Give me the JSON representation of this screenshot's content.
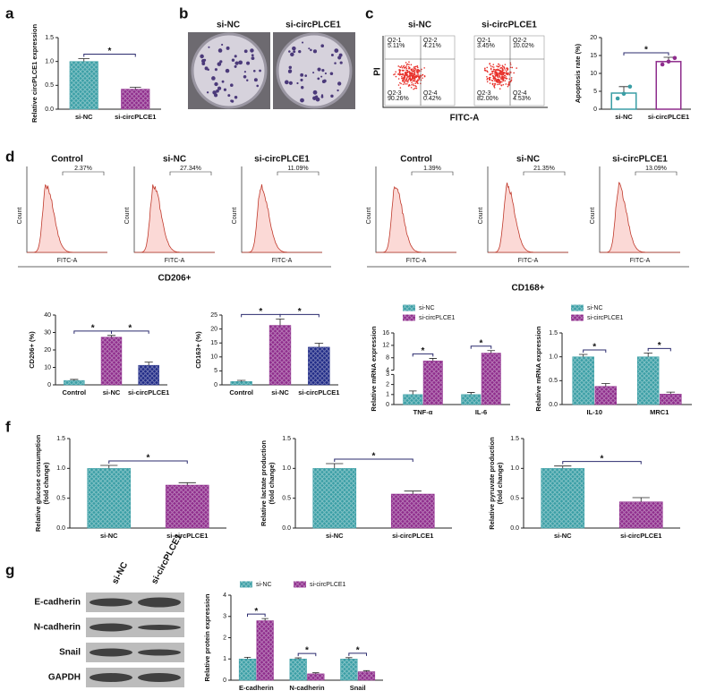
{
  "panel_labels": [
    "a",
    "b",
    "c",
    "d",
    "f",
    "g"
  ],
  "colony_assay": {
    "labels": [
      "si-NC",
      "si-circPLCE1"
    ]
  },
  "flow_apoptosis": {
    "y_label": "PI",
    "x_label": "FITC-A",
    "plots": [
      {
        "title": "si-NC",
        "quadrants": [
          {
            "name": "Q2-1",
            "percent": "5.11%"
          },
          {
            "name": "Q2-2",
            "percent": "4.21%"
          },
          {
            "name": "Q2-3",
            "percent": "90.26%"
          },
          {
            "name": "Q2-4",
            "percent": "0.42%"
          }
        ]
      },
      {
        "title": "si-circPLCE1",
        "quadrants": [
          {
            "name": "Q2-1",
            "percent": "3.45%"
          },
          {
            "name": "Q2-2",
            "percent": "10.02%"
          },
          {
            "name": "Q2-3",
            "percent": "82.00%"
          },
          {
            "name": "Q2-4",
            "percent": "4.53%"
          }
        ]
      }
    ]
  },
  "histograms": {
    "x_label": "FITC-A",
    "y_label": "Count",
    "groups": [
      {
        "label": "CD206+",
        "plots": [
          {
            "title": "Control",
            "gate": "2.37%"
          },
          {
            "title": "si-NC",
            "gate": "27.34%"
          },
          {
            "title": "si-circPLCE1",
            "gate": "11.09%"
          }
        ]
      },
      {
        "label": "CD168+",
        "plots": [
          {
            "title": "Control",
            "gate": "1.39%"
          },
          {
            "title": "si-NC",
            "gate": "21.35%"
          },
          {
            "title": "si-circPLCE1",
            "gate": "13.09%"
          }
        ]
      }
    ]
  },
  "western_blot": {
    "lanes": [
      "si-NC",
      "si-circPLCE1"
    ],
    "rows": [
      "E-cadherin",
      "N-cadherin",
      "Snail",
      "GAPDH"
    ]
  },
  "chart_data": [
    {
      "type": "bar",
      "y_label": "Relative circPLCE1 expression",
      "categories": [
        "si-NC",
        "si-circPLCE1"
      ],
      "values": [
        1.0,
        0.42
      ],
      "errors": [
        0.06,
        0.04
      ],
      "colors": [
        "#3a9ea5",
        "#8e2c8c"
      ],
      "ylim": [
        0,
        1.5
      ],
      "yticks": [
        {
          "value": 0,
          "label": "0.0"
        },
        0.5,
        {
          "value": 1,
          "label": "1.0"
        },
        1.5
      ],
      "significance": [
        {
          "label": "*",
          "between": [
            0,
            1
          ]
        }
      ]
    },
    {
      "type": "bar",
      "y_label": "Apoptosis rate (%)",
      "categories": [
        "si-NC",
        "si-circPLCE1"
      ],
      "values": [
        4.5,
        13.3
      ],
      "errors": [
        1.8,
        1.2
      ],
      "points": [
        [
          3.0,
          4.3,
          6.3
        ],
        [
          12.5,
          13.3,
          14.3
        ]
      ],
      "colors": [
        "#3a9ea5",
        "#8e2c8c"
      ],
      "bar_style": "outline",
      "ylim": [
        0,
        20
      ],
      "yticks": [
        0,
        5,
        10,
        15,
        20
      ],
      "significance": [
        {
          "label": "*",
          "between": [
            0,
            1
          ]
        }
      ]
    },
    {
      "type": "bar",
      "y_label": "CD206+ (%)",
      "categories": [
        "Control",
        "si-NC",
        "si-circPLCE1"
      ],
      "values": [
        2.5,
        27.3,
        11.2
      ],
      "errors": [
        0.6,
        1.0,
        1.8
      ],
      "colors": [
        "#3a9ea5",
        "#8e2c8c",
        "#1f2a86"
      ],
      "ylim": [
        0,
        40
      ],
      "yticks": [
        0,
        10,
        20,
        30,
        40
      ],
      "significance": [
        {
          "label": "*",
          "between": [
            0,
            1
          ]
        },
        {
          "label": "*",
          "between": [
            1,
            2
          ]
        }
      ]
    },
    {
      "type": "bar",
      "y_label": "CD163+ (%)",
      "categories": [
        "Control",
        "si-NC",
        "si-circPLCE1"
      ],
      "values": [
        1.2,
        21.3,
        13.5
      ],
      "errors": [
        0.4,
        2.3,
        1.4
      ],
      "colors": [
        "#3a9ea5",
        "#8e2c8c",
        "#1f2a86"
      ],
      "ylim": [
        0,
        25
      ],
      "yticks": [
        0,
        5,
        10,
        15,
        20,
        25
      ],
      "significance": [
        {
          "label": "*",
          "between": [
            0,
            1
          ]
        },
        {
          "label": "*",
          "between": [
            1,
            2
          ]
        }
      ]
    },
    {
      "type": "bar",
      "y_label": "Relative mRNA expression",
      "categories": [
        "TNF-α",
        "IL-6"
      ],
      "series": [
        {
          "name": "si-NC",
          "color": "#3a9ea5",
          "values": [
            1.0,
            1.0
          ],
          "errors": [
            0.35,
            0.2
          ]
        },
        {
          "name": "si-circPLCE1",
          "color": "#8e2c8c",
          "values": [
            7.0,
            9.5
          ],
          "errors": [
            0.8,
            0.8
          ]
        }
      ],
      "ylim": [
        0,
        16
      ],
      "ybreak": [
        3,
        4
      ],
      "yticks": [
        0,
        1,
        2,
        3,
        4,
        8,
        12,
        16
      ],
      "significance": [
        {
          "label": "*",
          "category": 0
        },
        {
          "label": "*",
          "category": 1
        }
      ]
    },
    {
      "type": "bar",
      "y_label": "Relative mRNA expression",
      "categories": [
        "IL-10",
        "MRC1"
      ],
      "series": [
        {
          "name": "si-NC",
          "color": "#3a9ea5",
          "values": [
            1.0,
            1.0
          ],
          "errors": [
            0.05,
            0.08
          ]
        },
        {
          "name": "si-circPLCE1",
          "color": "#8e2c8c",
          "values": [
            0.38,
            0.22
          ],
          "errors": [
            0.06,
            0.04
          ]
        }
      ],
      "ylim": [
        0,
        1.5
      ],
      "yticks": [
        {
          "value": 0,
          "label": "0.0"
        },
        0.5,
        {
          "value": 1,
          "label": "1.0"
        },
        1.5
      ],
      "significance": [
        {
          "label": "*",
          "category": 0
        },
        {
          "label": "*",
          "category": 1
        }
      ]
    },
    {
      "type": "bar",
      "y_label": [
        "Relative glucose consumption",
        "(fold change)"
      ],
      "categories": [
        "si-NC",
        "si-circPLCE1"
      ],
      "values": [
        1.0,
        0.72
      ],
      "errors": [
        0.05,
        0.04
      ],
      "colors": [
        "#3a9ea5",
        "#8e2c8c"
      ],
      "ylim": [
        0,
        1.5
      ],
      "yticks": [
        {
          "value": 0,
          "label": "0.0"
        },
        0.5,
        {
          "value": 1,
          "label": "1.0"
        },
        1.5
      ],
      "significance": [
        {
          "label": "*",
          "between": [
            0,
            1
          ]
        }
      ]
    },
    {
      "type": "bar",
      "y_label": [
        "Relative lactate production",
        "(fold change)"
      ],
      "categories": [
        "si-NC",
        "si-circPLCE1"
      ],
      "values": [
        1.0,
        0.57
      ],
      "errors": [
        0.08,
        0.05
      ],
      "colors": [
        "#3a9ea5",
        "#8e2c8c"
      ],
      "ylim": [
        0,
        1.5
      ],
      "yticks": [
        {
          "value": 0,
          "label": "0.0"
        },
        0.5,
        {
          "value": 1,
          "label": "1.0"
        },
        1.5
      ],
      "significance": [
        {
          "label": "*",
          "between": [
            0,
            1
          ]
        }
      ]
    },
    {
      "type": "bar",
      "y_label": [
        "Relative pyruvate production",
        "(fold change)"
      ],
      "categories": [
        "si-NC",
        "si-circPLCE1"
      ],
      "values": [
        1.0,
        0.44
      ],
      "errors": [
        0.04,
        0.07
      ],
      "colors": [
        "#3a9ea5",
        "#8e2c8c"
      ],
      "ylim": [
        0,
        1.5
      ],
      "yticks": [
        {
          "value": 0,
          "label": "0.0"
        },
        0.5,
        {
          "value": 1,
          "label": "1.0"
        },
        1.5
      ],
      "significance": [
        {
          "label": "*",
          "between": [
            0,
            1
          ]
        }
      ]
    },
    {
      "type": "bar",
      "y_label": "Relative protein expression",
      "categories": [
        "E-cadherin",
        "N-cadherin",
        "Snail"
      ],
      "series": [
        {
          "name": "si-NC",
          "color": "#3a9ea5",
          "values": [
            1.0,
            1.0,
            1.0
          ],
          "errors": [
            0.08,
            0.05,
            0.06
          ]
        },
        {
          "name": "si-circPLCE1",
          "color": "#8e2c8c",
          "values": [
            2.8,
            0.3,
            0.4
          ],
          "errors": [
            0.1,
            0.05,
            0.05
          ]
        }
      ],
      "ylim": [
        0,
        4
      ],
      "yticks": [
        0,
        1,
        2,
        3,
        4
      ],
      "significance": [
        {
          "label": "*",
          "category": 0
        },
        {
          "label": "*",
          "category": 1
        },
        {
          "label": "*",
          "category": 2
        }
      ]
    }
  ]
}
